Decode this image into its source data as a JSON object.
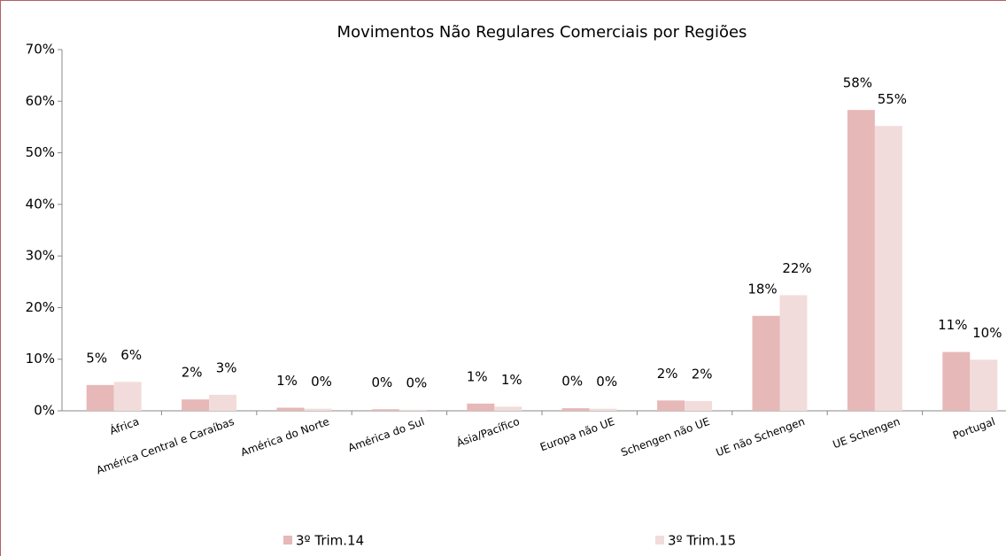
{
  "chart_data": {
    "type": "bar",
    "title": "Movimentos Não Regulares Comerciais por Regiões",
    "categories": [
      "África",
      "América Central e Caraíbas",
      "América do Norte",
      "América do Sul",
      "Ásia/Pacífico",
      "Europa não UE",
      "Schengen não UE",
      "UE não Schengen",
      "UE Schengen",
      "Portugal"
    ],
    "series": [
      {
        "name": "3º Trim.14",
        "color": "#e6b8b7",
        "values": [
          5.0,
          2.2,
          0.6,
          0.3,
          1.4,
          0.5,
          2.0,
          18.4,
          58.3,
          11.4
        ],
        "value_labels": [
          "5%",
          "2%",
          "1%",
          "0%",
          "1%",
          "0%",
          "2%",
          "18%",
          "58%",
          "11%"
        ]
      },
      {
        "name": "3º Trim.15",
        "color": "#f2dcdb",
        "values": [
          5.6,
          3.1,
          0.4,
          0.2,
          0.8,
          0.4,
          1.9,
          22.4,
          55.2,
          9.9
        ],
        "value_labels": [
          "6%",
          "3%",
          "0%",
          "0%",
          "1%",
          "0%",
          "2%",
          "22%",
          "55%",
          "10%"
        ]
      }
    ],
    "ylim": [
      0,
      70
    ],
    "yticks": [
      {
        "value": 0,
        "label": "0%"
      },
      {
        "value": 10,
        "label": "10%"
      },
      {
        "value": 20,
        "label": "20%"
      },
      {
        "value": 30,
        "label": "30%"
      },
      {
        "value": 40,
        "label": "40%"
      },
      {
        "value": 50,
        "label": "50%"
      },
      {
        "value": 60,
        "label": "60%"
      },
      {
        "value": 70,
        "label": "70%"
      }
    ],
    "legend": "bottom"
  }
}
